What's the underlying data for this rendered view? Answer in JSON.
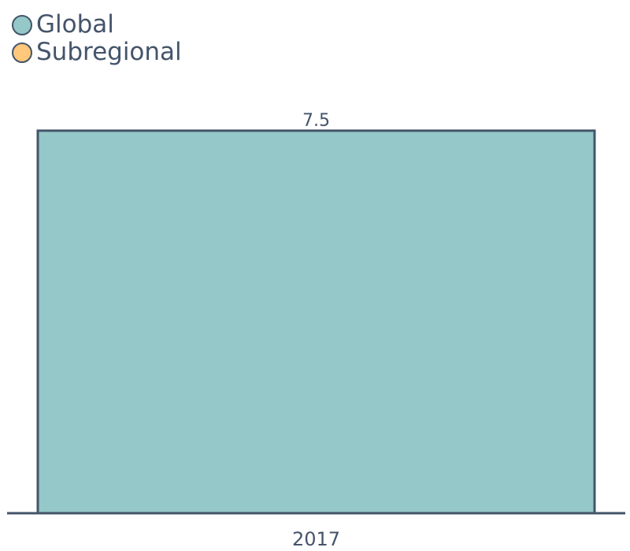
{
  "chart_data": {
    "type": "bar",
    "categories": [
      "2017"
    ],
    "series": [
      {
        "name": "Global",
        "values": [
          7.5
        ],
        "color": "#95c8c8"
      },
      {
        "name": "Subregional",
        "values": [
          null
        ],
        "color": "#ffc87a"
      }
    ],
    "data_labels": [
      "7.5"
    ],
    "ylim": [
      0,
      7.5
    ],
    "grid": false,
    "legend_position": "top-left"
  },
  "colors": {
    "text": "#44546a",
    "outline": "#44546a"
  }
}
